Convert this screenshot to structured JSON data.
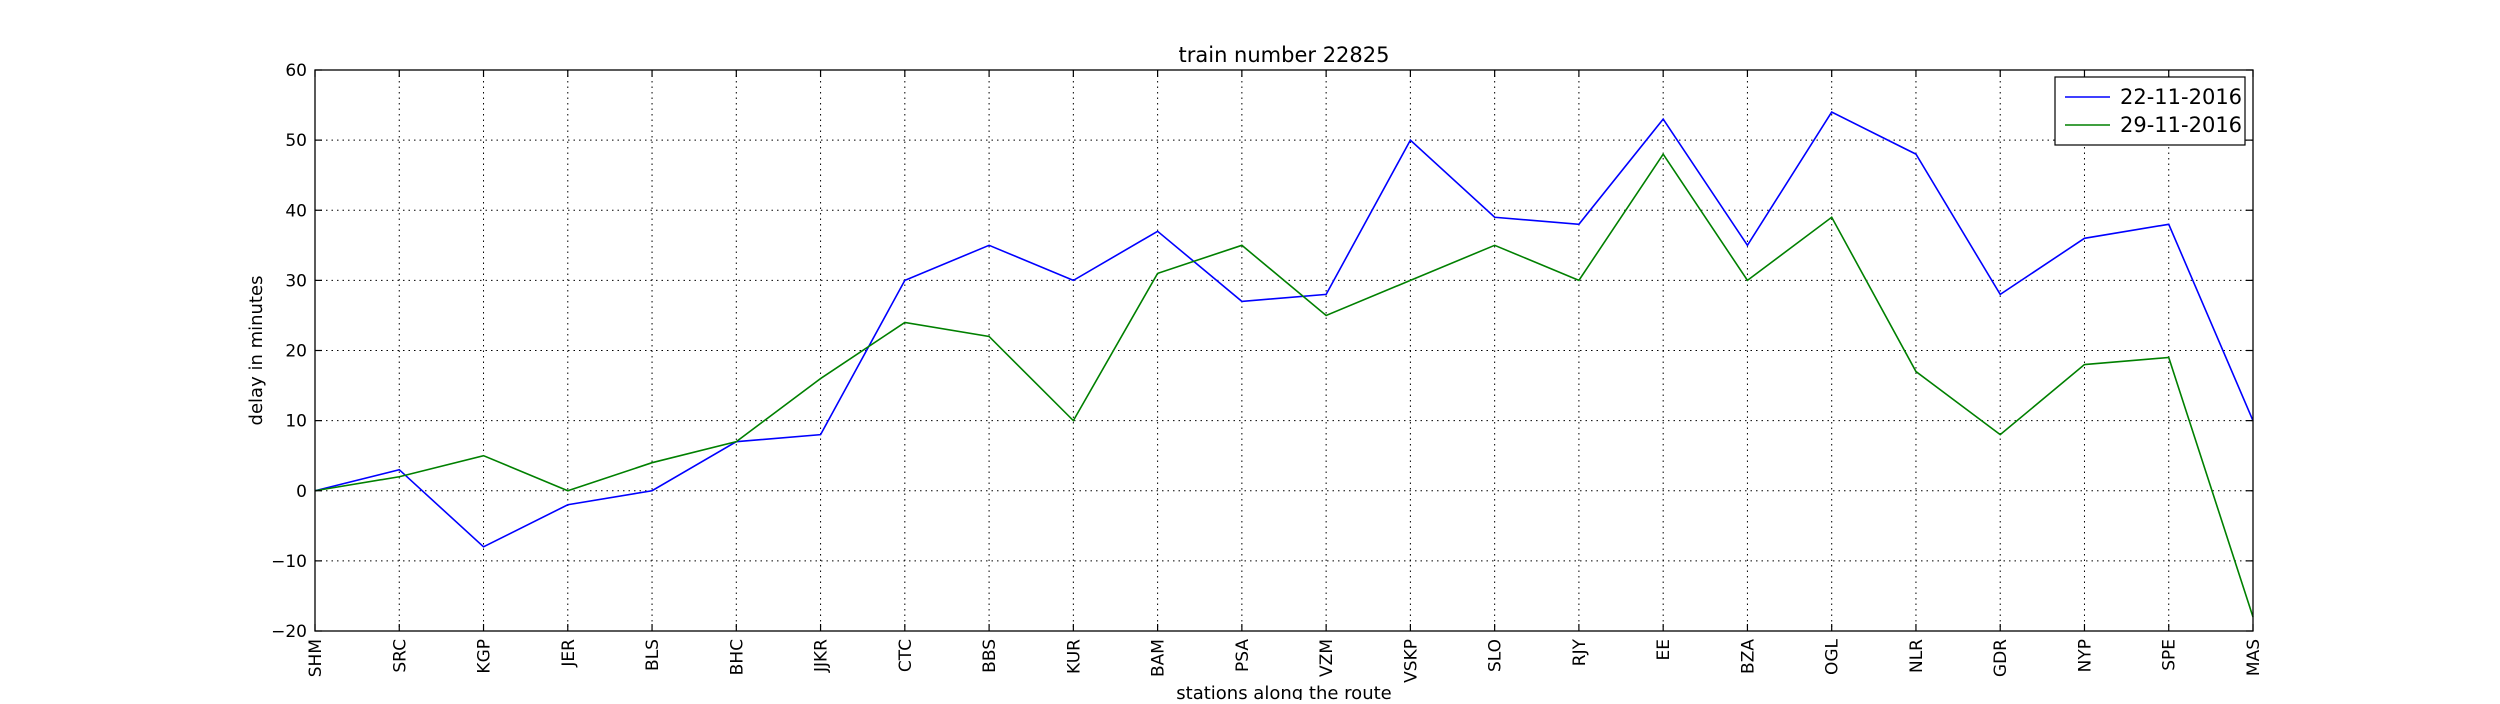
{
  "chart_data": {
    "type": "line",
    "title": "train number 22825",
    "xlabel": "stations along the route",
    "ylabel": "delay in minutes",
    "categories": [
      "SHM",
      "SRC",
      "KGP",
      "JER",
      "BLS",
      "BHC",
      "JJKR",
      "CTC",
      "BBS",
      "KUR",
      "BAM",
      "PSA",
      "VZM",
      "VSKP",
      "SLO",
      "RJY",
      "EE",
      "BZA",
      "OGL",
      "NLR",
      "GDR",
      "NYP",
      "SPE",
      "MAS"
    ],
    "ylim": [
      -20,
      60
    ],
    "yticks": [
      -20,
      -10,
      0,
      10,
      20,
      30,
      40,
      50,
      60
    ],
    "grid": true,
    "legend_position": "top-right",
    "series": [
      {
        "name": "22-11-2016",
        "color": "#0000ff",
        "values": [
          0,
          3,
          -8,
          -2,
          0,
          7,
          8,
          30,
          35,
          30,
          37,
          27,
          28,
          50,
          39,
          38,
          53,
          35,
          54,
          48,
          28,
          36,
          38,
          10
        ]
      },
      {
        "name": "29-11-2016",
        "color": "#008000",
        "values": [
          0,
          2,
          5,
          0,
          4,
          7,
          16,
          24,
          22,
          10,
          31,
          35,
          25,
          30,
          35,
          30,
          48,
          30,
          39,
          17,
          8,
          18,
          19,
          -18
        ]
      }
    ]
  }
}
